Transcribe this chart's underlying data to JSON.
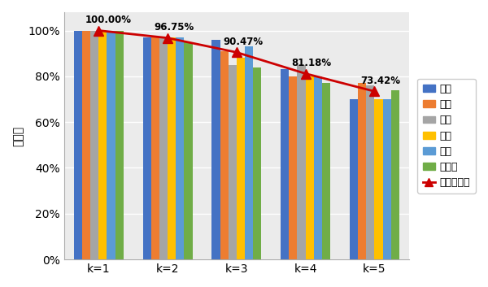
{
  "categories": [
    "k=1",
    "k=2",
    "k=3",
    "k=4",
    "k=5"
  ],
  "series": {
    "鸣笛": [
      100.0,
      97.0,
      96.0,
      83.0,
      70.0
    ],
    "家庭": [
      100.0,
      97.0,
      91.0,
      80.0,
      77.0
    ],
    "动物": [
      100.0,
      97.0,
      85.0,
      85.0,
      76.0
    ],
    "对话": [
      100.0,
      97.0,
      88.0,
      80.0,
      70.0
    ],
    "乐器": [
      100.0,
      97.0,
      93.0,
      80.0,
      70.0
    ],
    "命令词": [
      100.0,
      95.0,
      84.0,
      77.0,
      74.0
    ]
  },
  "avg_accuracy": [
    100.0,
    96.75,
    90.47,
    81.18,
    73.42
  ],
  "bar_colors": [
    "#4472C4",
    "#ED7D31",
    "#A5A5A5",
    "#FFC000",
    "#5B9BD5",
    "#70AD47"
  ],
  "line_color": "#CC0000",
  "line_marker": "^",
  "legend_labels": [
    "鸣笛",
    "家庭",
    "动物",
    "对话",
    "乐器",
    "命令词",
    "平均准确率"
  ],
  "ylabel": "成功率",
  "ylim": [
    0,
    108
  ],
  "yticks": [
    0,
    20,
    40,
    60,
    80,
    100
  ],
  "ytick_labels": [
    "0%",
    "20%",
    "40%",
    "60%",
    "80%",
    "100%"
  ],
  "avg_annotations": [
    "100.00%",
    "96.75%",
    "90.47%",
    "81.18%",
    "73.42%"
  ],
  "bg_color": "#EBEBEB",
  "axis_fontsize": 10,
  "bar_width": 0.12,
  "figsize": [
    6.0,
    3.53
  ],
  "dpi": 100
}
